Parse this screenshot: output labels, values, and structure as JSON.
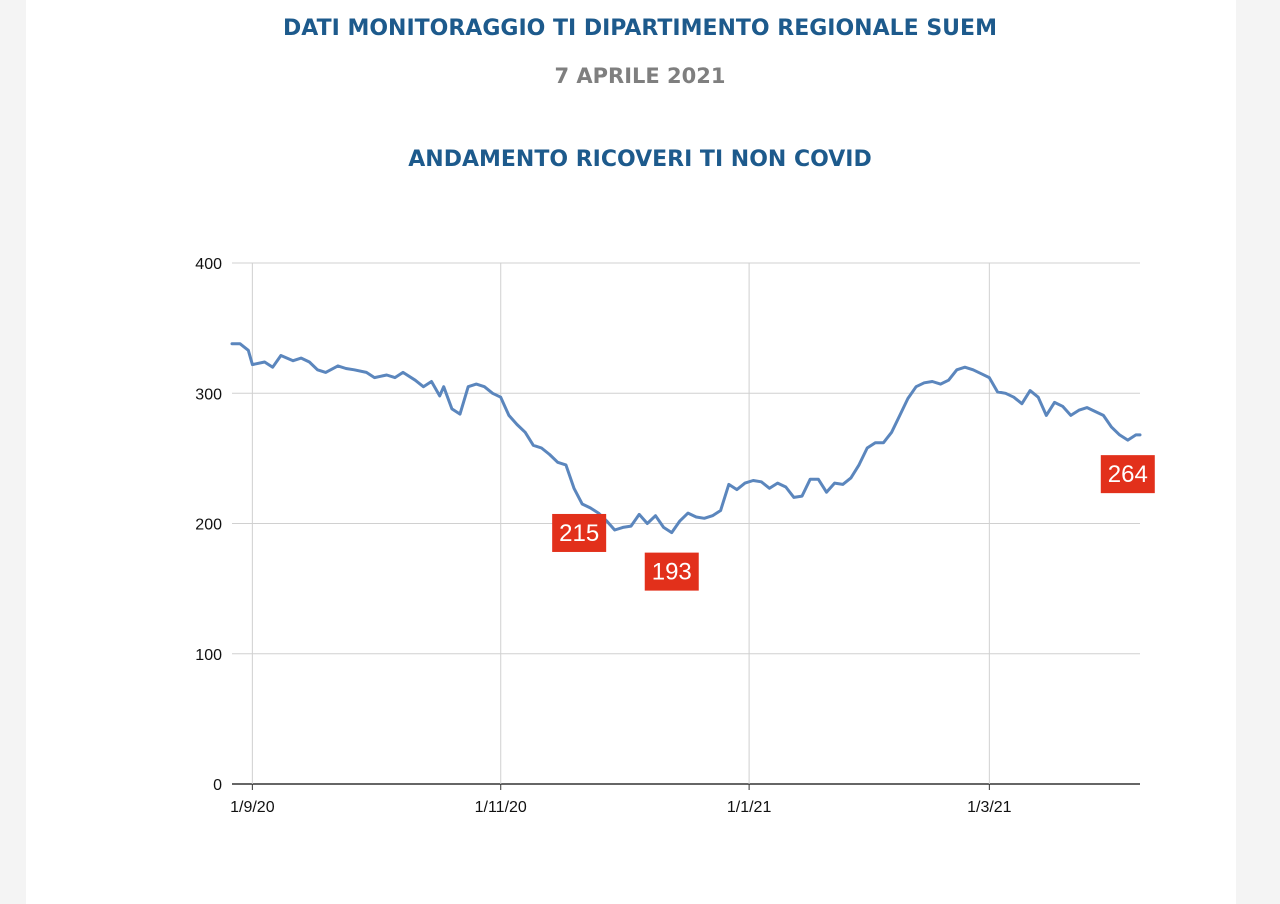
{
  "header": {
    "title": "DATI MONITORAGGIO TI DIPARTIMENTO REGIONALE SUEM",
    "date": "7 APRILE 2021",
    "subtitle": "ANDAMENTO RICOVERI TI NON COVID"
  },
  "colors": {
    "title": "#1d5a8c",
    "date": "#7f7f7f",
    "line": "#5b86bd",
    "annotation": "#e2301b",
    "grid": "#d0d0d0"
  },
  "chart_data": {
    "type": "line",
    "title": "ANDAMENTO RICOVERI TI NON COVID",
    "xlabel": "",
    "ylabel": "",
    "ylim": [
      0,
      400
    ],
    "yticks": [
      0,
      100,
      200,
      300,
      400
    ],
    "xlim": [
      "2020-08-27",
      "2021-04-07"
    ],
    "xticks": [
      {
        "date": "2020-09-01",
        "label": "1/9/20"
      },
      {
        "date": "2020-11-01",
        "label": "1/11/20"
      },
      {
        "date": "2021-01-01",
        "label": "1/1/21"
      },
      {
        "date": "2021-03-01",
        "label": "1/3/21"
      }
    ],
    "grid": true,
    "series": [
      {
        "x": [
          "2020-08-27",
          "2020-08-29",
          "2020-08-31",
          "2020-09-01",
          "2020-09-04",
          "2020-09-06",
          "2020-09-08",
          "2020-09-11",
          "2020-09-13",
          "2020-09-15",
          "2020-09-17",
          "2020-09-19",
          "2020-09-22",
          "2020-09-24",
          "2020-09-26",
          "2020-09-29",
          "2020-10-01",
          "2020-10-04",
          "2020-10-06",
          "2020-10-08",
          "2020-10-11",
          "2020-10-13",
          "2020-10-15",
          "2020-10-17",
          "2020-10-18",
          "2020-10-20",
          "2020-10-22",
          "2020-10-24",
          "2020-10-26",
          "2020-10-28",
          "2020-10-30",
          "2020-11-01",
          "2020-11-03",
          "2020-11-05",
          "2020-11-07",
          "2020-11-09",
          "2020-11-11",
          "2020-11-13",
          "2020-11-15",
          "2020-11-17",
          "2020-11-19",
          "2020-11-21",
          "2020-11-23",
          "2020-11-25",
          "2020-11-27",
          "2020-11-29",
          "2020-12-01",
          "2020-12-03",
          "2020-12-05",
          "2020-12-07",
          "2020-12-09",
          "2020-12-11",
          "2020-12-13",
          "2020-12-15",
          "2020-12-17",
          "2020-12-19",
          "2020-12-21",
          "2020-12-23",
          "2020-12-25",
          "2020-12-27",
          "2020-12-29",
          "2020-12-31",
          "2021-01-02",
          "2021-01-04",
          "2021-01-06",
          "2021-01-08",
          "2021-01-10",
          "2021-01-12",
          "2021-01-14",
          "2021-01-16",
          "2021-01-18",
          "2021-01-20",
          "2021-01-22",
          "2021-01-24",
          "2021-01-26",
          "2021-01-28",
          "2021-01-30",
          "2021-02-01",
          "2021-02-03",
          "2021-02-05",
          "2021-02-07",
          "2021-02-09",
          "2021-02-11",
          "2021-02-13",
          "2021-02-15",
          "2021-02-17",
          "2021-02-19",
          "2021-02-21",
          "2021-02-23",
          "2021-02-25",
          "2021-02-27",
          "2021-03-01",
          "2021-03-03",
          "2021-03-05",
          "2021-03-07",
          "2021-03-09",
          "2021-03-11",
          "2021-03-13",
          "2021-03-15",
          "2021-03-17",
          "2021-03-19",
          "2021-03-21",
          "2021-03-23",
          "2021-03-25",
          "2021-03-27",
          "2021-03-29",
          "2021-03-31",
          "2021-04-02",
          "2021-04-04",
          "2021-04-06",
          "2021-04-07"
        ],
        "y": [
          338,
          338,
          333,
          322,
          324,
          320,
          329,
          325,
          327,
          324,
          318,
          316,
          321,
          319,
          318,
          316,
          312,
          314,
          312,
          316,
          310,
          305,
          309,
          298,
          305,
          288,
          284,
          305,
          307,
          305,
          300,
          297,
          283,
          276,
          270,
          260,
          258,
          253,
          247,
          245,
          227,
          215,
          212,
          208,
          202,
          195,
          197,
          198,
          207,
          200,
          206,
          197,
          193,
          202,
          208,
          205,
          204,
          206,
          210,
          230,
          226,
          231,
          233,
          232,
          227,
          231,
          228,
          220,
          221,
          234,
          234,
          224,
          231,
          230,
          235,
          245,
          258,
          262,
          262,
          270,
          283,
          296,
          305,
          308,
          309,
          307,
          310,
          318,
          320,
          318,
          315,
          312,
          301,
          300,
          297,
          292,
          302,
          297,
          283,
          293,
          290,
          283,
          287,
          289,
          286,
          283,
          274,
          268,
          264,
          268,
          268
        ]
      }
    ],
    "annotations": [
      {
        "label": "215",
        "x": "2020-11-21",
        "y": 215
      },
      {
        "label": "193",
        "x": "2020-12-13",
        "y": 193
      },
      {
        "label": "264",
        "x": "2021-04-04",
        "y": 264
      }
    ]
  }
}
